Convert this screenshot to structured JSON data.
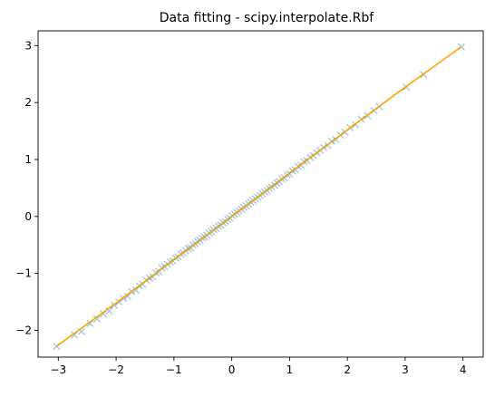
{
  "chart_data": {
    "type": "scatter",
    "title": "Data fitting - scipy.interpolate.Rbf",
    "xlabel": "",
    "ylabel": "",
    "xlim": [
      -3.35,
      4.35
    ],
    "ylim": [
      -2.47,
      3.26
    ],
    "xticks": [
      -3,
      -2,
      -1,
      0,
      1,
      2,
      3,
      4
    ],
    "yticks": [
      -2,
      -1,
      0,
      1,
      2,
      3
    ],
    "xtick_labels": [
      "−3",
      "−2",
      "−1",
      "0",
      "1",
      "2",
      "3",
      "4"
    ],
    "ytick_labels": [
      "−2",
      "−1",
      "0",
      "1",
      "2",
      "3"
    ],
    "grid": false,
    "legend": "none",
    "series": [
      {
        "kind": "scatter",
        "marker": "x",
        "color": "#1f77b4",
        "alpha": 0.4,
        "x": [
          -3.03,
          -2.72,
          -2.6,
          -2.45,
          -2.33,
          -2.22,
          -2.12,
          -2.03,
          -1.95,
          -1.87,
          -1.8,
          -1.73,
          -1.66,
          -1.6,
          -1.54,
          -1.48,
          -1.42,
          -1.37,
          -1.31,
          -1.26,
          -1.21,
          -1.16,
          -1.11,
          -1.06,
          -1.02,
          -0.97,
          -0.93,
          -0.88,
          -0.84,
          -0.8,
          -0.75,
          -0.71,
          -0.67,
          -0.63,
          -0.59,
          -0.55,
          -0.51,
          -0.47,
          -0.43,
          -0.39,
          -0.35,
          -0.31,
          -0.27,
          -0.23,
          -0.19,
          -0.15,
          -0.11,
          -0.07,
          -0.03,
          0.01,
          0.05,
          0.09,
          0.13,
          0.17,
          0.21,
          0.25,
          0.29,
          0.33,
          0.37,
          0.41,
          0.45,
          0.49,
          0.53,
          0.57,
          0.61,
          0.65,
          0.69,
          0.74,
          0.78,
          0.82,
          0.87,
          0.91,
          0.96,
          1.0,
          1.05,
          1.1,
          1.15,
          1.2,
          1.25,
          1.3,
          1.36,
          1.41,
          1.47,
          1.53,
          1.59,
          1.66,
          1.73,
          1.8,
          1.88,
          1.96,
          2.05,
          2.14,
          2.24,
          2.35,
          2.46,
          2.55,
          3.02,
          3.32,
          3.97
        ],
        "y": [
          -2.28,
          -2.08,
          -2.02,
          -1.88,
          -1.8,
          -1.71,
          -1.66,
          -1.56,
          -1.5,
          -1.44,
          -1.4,
          -1.32,
          -1.29,
          -1.22,
          -1.19,
          -1.12,
          -1.08,
          -1.06,
          -0.99,
          -0.97,
          -0.9,
          -0.88,
          -0.84,
          -0.8,
          -0.78,
          -0.73,
          -0.71,
          -0.66,
          -0.64,
          -0.6,
          -0.56,
          -0.55,
          -0.5,
          -0.48,
          -0.44,
          -0.42,
          -0.38,
          -0.36,
          -0.33,
          -0.29,
          -0.27,
          -0.23,
          -0.21,
          -0.17,
          -0.15,
          -0.11,
          -0.09,
          -0.05,
          -0.03,
          0.01,
          0.04,
          0.07,
          0.1,
          0.13,
          0.16,
          0.19,
          0.22,
          0.25,
          0.28,
          0.31,
          0.34,
          0.37,
          0.4,
          0.43,
          0.46,
          0.49,
          0.52,
          0.55,
          0.59,
          0.61,
          0.66,
          0.68,
          0.73,
          0.75,
          0.8,
          0.82,
          0.88,
          0.9,
          0.96,
          0.98,
          1.04,
          1.07,
          1.12,
          1.16,
          1.21,
          1.25,
          1.32,
          1.35,
          1.43,
          1.48,
          1.56,
          1.61,
          1.71,
          1.77,
          1.86,
          1.93,
          2.27,
          2.49,
          2.98
        ]
      },
      {
        "kind": "line",
        "color": "#ffa500",
        "x": [
          -3.03,
          -2.0,
          -1.0,
          0.0,
          1.0,
          2.0,
          3.0,
          3.97
        ],
        "y": [
          -2.28,
          -1.52,
          -0.76,
          0.0,
          0.76,
          1.52,
          2.27,
          2.98
        ]
      }
    ]
  }
}
